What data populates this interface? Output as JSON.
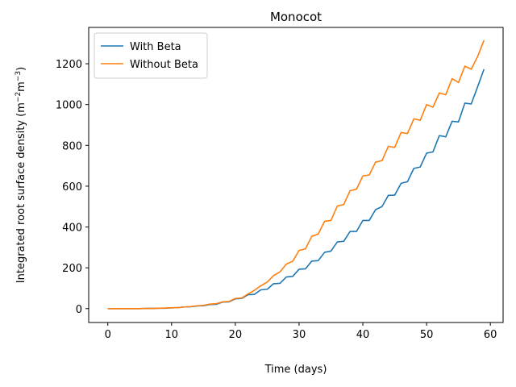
{
  "chart_data": {
    "type": "line",
    "title": "Monocot",
    "xlabel": "Time (days)",
    "ylabel_prefix": "Integrated root surface density (m",
    "ylabel_exp1": "−2",
    "ylabel_mid": "m",
    "ylabel_exp2": "−3",
    "ylabel_suffix": ")",
    "xlim": [
      -3,
      62
    ],
    "ylim": [
      -68,
      1378
    ],
    "xticks": [
      0,
      10,
      20,
      30,
      40,
      50,
      60
    ],
    "yticks": [
      0,
      200,
      400,
      600,
      800,
      1000,
      1200
    ],
    "legend_position": "top-left",
    "x": [
      0,
      1,
      2,
      3,
      4,
      5,
      6,
      7,
      8,
      9,
      10,
      11,
      12,
      13,
      14,
      15,
      16,
      17,
      18,
      19,
      20,
      21,
      22,
      23,
      24,
      25,
      26,
      27,
      28,
      29,
      30,
      31,
      32,
      33,
      34,
      35,
      36,
      37,
      38,
      39,
      40,
      41,
      42,
      43,
      44,
      45,
      46,
      47,
      48,
      49,
      50,
      51,
      52,
      53,
      54,
      55,
      56,
      57,
      58,
      59
    ],
    "series": [
      {
        "name": "With Beta",
        "color": "#1f77b4",
        "values": [
          0,
          0,
          0,
          0,
          0,
          0,
          1,
          1,
          2,
          2,
          4,
          5,
          8,
          9,
          13,
          14,
          20,
          21,
          32,
          33,
          48,
          50,
          68,
          70,
          92,
          95,
          122,
          124,
          155,
          158,
          193,
          195,
          233,
          235,
          276,
          282,
          327,
          330,
          378,
          378,
          432,
          432,
          485,
          500,
          555,
          556,
          614,
          622,
          687,
          694,
          762,
          768,
          848,
          842,
          918,
          915,
          1007,
          1003,
          1087,
          1173
        ]
      },
      {
        "name": "Without Beta",
        "color": "#ff7f0e",
        "values": [
          0,
          0,
          0,
          0,
          0,
          0,
          1,
          1,
          2,
          3,
          4,
          5,
          8,
          10,
          14,
          16,
          22,
          24,
          33,
          35,
          50,
          52,
          72,
          90,
          112,
          130,
          162,
          180,
          218,
          232,
          285,
          293,
          355,
          365,
          428,
          432,
          503,
          510,
          578,
          585,
          650,
          655,
          718,
          725,
          795,
          790,
          863,
          858,
          930,
          923,
          1000,
          987,
          1057,
          1048,
          1127,
          1108,
          1188,
          1173,
          1235,
          1315
        ]
      }
    ]
  }
}
